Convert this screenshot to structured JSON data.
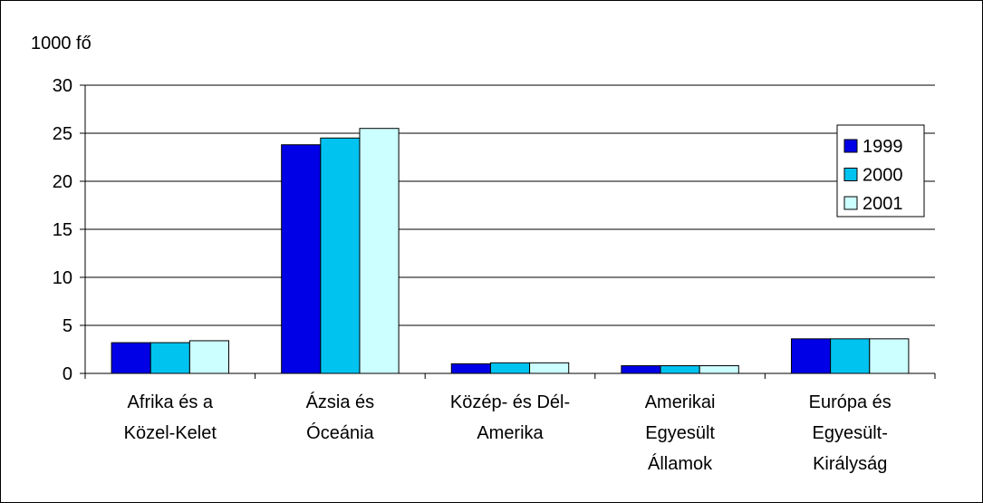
{
  "chart_data": {
    "type": "bar",
    "title": "",
    "ylabel": "1000 fő",
    "xlabel": "",
    "ylim": [
      0,
      30
    ],
    "yticks": [
      0,
      5,
      10,
      15,
      20,
      25,
      30
    ],
    "grid": true,
    "legend_position": "top-right",
    "categories": [
      [
        "Afrika és a",
        "Közel-Kelet"
      ],
      [
        "Ázsia és",
        "Óceánia"
      ],
      [
        "Közép- és Dél-",
        "Amerika"
      ],
      [
        "Amerikai",
        "Egyesült",
        "Államok"
      ],
      [
        "Európa és",
        "Egyesült-",
        "Királyság"
      ]
    ],
    "series": [
      {
        "name": "1999",
        "color": "#0000E6",
        "values": [
          3.2,
          23.8,
          1.0,
          0.8,
          3.6
        ]
      },
      {
        "name": "2000",
        "color": "#00C3F0",
        "values": [
          3.2,
          24.5,
          1.1,
          0.8,
          3.6
        ]
      },
      {
        "name": "2001",
        "color": "#CCFFFF",
        "values": [
          3.4,
          25.5,
          1.1,
          0.8,
          3.6
        ]
      }
    ]
  }
}
